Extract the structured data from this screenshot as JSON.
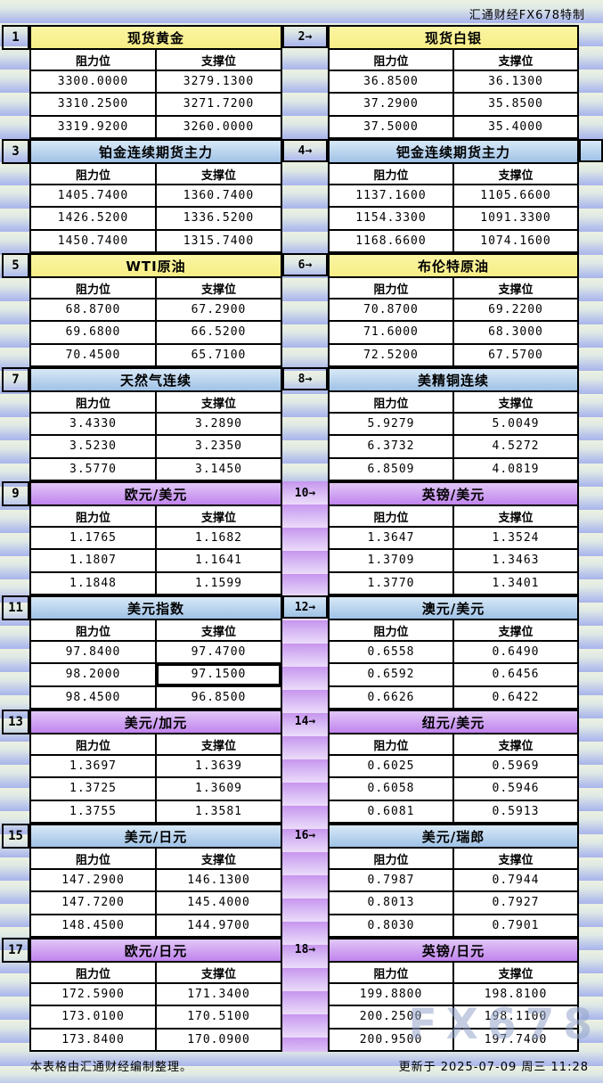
{
  "credit": "汇通财经FX678特制",
  "watermark": "FX678",
  "footer": {
    "left": "本表格由汇通财经编制整理。",
    "right": "更新于 2025-07-09 周三 11:28"
  },
  "columns": {
    "resistance": "阻力位",
    "support": "支撑位"
  },
  "colors": {
    "header_yellow": "#f8ef8c",
    "header_blue": "#a9c9ea",
    "header_purple": "#c98fef",
    "stripe_green": "#ecf2e1",
    "stripe_blue": "#a9b5e9",
    "gutter_purple": "#cf9ff0",
    "cell_bg": "#ffffff",
    "border": "#000000"
  },
  "selected_cell": {
    "panel": 10,
    "row": 1,
    "col": 1
  },
  "panels": [
    {
      "label": "1",
      "title": "现货黄金",
      "theme": "yellow",
      "rows": [
        [
          "3300.0000",
          "3279.1300"
        ],
        [
          "3310.2500",
          "3271.7200"
        ],
        [
          "3319.9200",
          "3260.0000"
        ]
      ]
    },
    {
      "label": "2→",
      "title": "现货白银",
      "theme": "yellow",
      "rows": [
        [
          "36.8500",
          "36.1300"
        ],
        [
          "37.2900",
          "35.8500"
        ],
        [
          "37.5000",
          "35.4000"
        ]
      ]
    },
    {
      "label": "3",
      "title": "铂金连续期货主力",
      "theme": "blue",
      "rows": [
        [
          "1405.7400",
          "1360.7400"
        ],
        [
          "1426.5200",
          "1336.5200"
        ],
        [
          "1450.7400",
          "1315.7400"
        ]
      ]
    },
    {
      "label": "4→",
      "title": "钯金连续期货主力",
      "theme": "blue",
      "rows": [
        [
          "1137.1600",
          "1105.6600"
        ],
        [
          "1154.3300",
          "1091.3300"
        ],
        [
          "1168.6600",
          "1074.1600"
        ]
      ]
    },
    {
      "label": "5",
      "title": "WTI原油",
      "theme": "yellow",
      "rows": [
        [
          "68.8700",
          "67.2900"
        ],
        [
          "69.6800",
          "66.5200"
        ],
        [
          "70.4500",
          "65.7100"
        ]
      ]
    },
    {
      "label": "6→",
      "title": "布伦特原油",
      "theme": "yellow",
      "rows": [
        [
          "70.8700",
          "69.2200"
        ],
        [
          "71.6000",
          "68.3000"
        ],
        [
          "72.5200",
          "67.5700"
        ]
      ]
    },
    {
      "label": "7",
      "title": "天然气连续",
      "theme": "blue",
      "rows": [
        [
          "3.4330",
          "3.2890"
        ],
        [
          "3.5230",
          "3.2350"
        ],
        [
          "3.5770",
          "3.1450"
        ]
      ]
    },
    {
      "label": "8→",
      "title": "美精铜连续",
      "theme": "blue",
      "rows": [
        [
          "5.9279",
          "5.0049"
        ],
        [
          "6.3732",
          "4.5272"
        ],
        [
          "6.8509",
          "4.0819"
        ]
      ]
    },
    {
      "label": "9",
      "title": "欧元/美元",
      "theme": "purple",
      "rows": [
        [
          "1.1765",
          "1.1682"
        ],
        [
          "1.1807",
          "1.1641"
        ],
        [
          "1.1848",
          "1.1599"
        ]
      ]
    },
    {
      "label": "10→",
      "title": "英镑/美元",
      "theme": "purple",
      "rows": [
        [
          "1.3647",
          "1.3524"
        ],
        [
          "1.3709",
          "1.3463"
        ],
        [
          "1.3770",
          "1.3401"
        ]
      ]
    },
    {
      "label": "11",
      "title": "美元指数",
      "theme": "blue",
      "rows": [
        [
          "97.8400",
          "97.4700"
        ],
        [
          "98.2000",
          "97.1500"
        ],
        [
          "98.4500",
          "96.8500"
        ]
      ]
    },
    {
      "label": "12→",
      "title": "澳元/美元",
      "theme": "blue",
      "rows": [
        [
          "0.6558",
          "0.6490"
        ],
        [
          "0.6592",
          "0.6456"
        ],
        [
          "0.6626",
          "0.6422"
        ]
      ]
    },
    {
      "label": "13",
      "title": "美元/加元",
      "theme": "purple",
      "rows": [
        [
          "1.3697",
          "1.3639"
        ],
        [
          "1.3725",
          "1.3609"
        ],
        [
          "1.3755",
          "1.3581"
        ]
      ]
    },
    {
      "label": "14→",
      "title": "纽元/美元",
      "theme": "purple",
      "rows": [
        [
          "0.6025",
          "0.5969"
        ],
        [
          "0.6058",
          "0.5946"
        ],
        [
          "0.6081",
          "0.5913"
        ]
      ]
    },
    {
      "label": "15",
      "title": "美元/日元",
      "theme": "blue",
      "rows": [
        [
          "147.2900",
          "146.1300"
        ],
        [
          "147.7200",
          "145.4000"
        ],
        [
          "148.4500",
          "144.9700"
        ]
      ]
    },
    {
      "label": "16→",
      "title": "美元/瑞郎",
      "theme": "blue",
      "rows": [
        [
          "0.7987",
          "0.7944"
        ],
        [
          "0.8013",
          "0.7927"
        ],
        [
          "0.8030",
          "0.7901"
        ]
      ]
    },
    {
      "label": "17",
      "title": "欧元/日元",
      "theme": "purple",
      "rows": [
        [
          "172.5900",
          "171.3400"
        ],
        [
          "173.0100",
          "170.5100"
        ],
        [
          "173.8400",
          "170.0900"
        ]
      ]
    },
    {
      "label": "18→",
      "title": "英镑/日元",
      "theme": "purple",
      "rows": [
        [
          "199.8800",
          "198.8100"
        ],
        [
          "200.2500",
          "198.1100"
        ],
        [
          "200.9500",
          "197.7400"
        ]
      ]
    }
  ]
}
